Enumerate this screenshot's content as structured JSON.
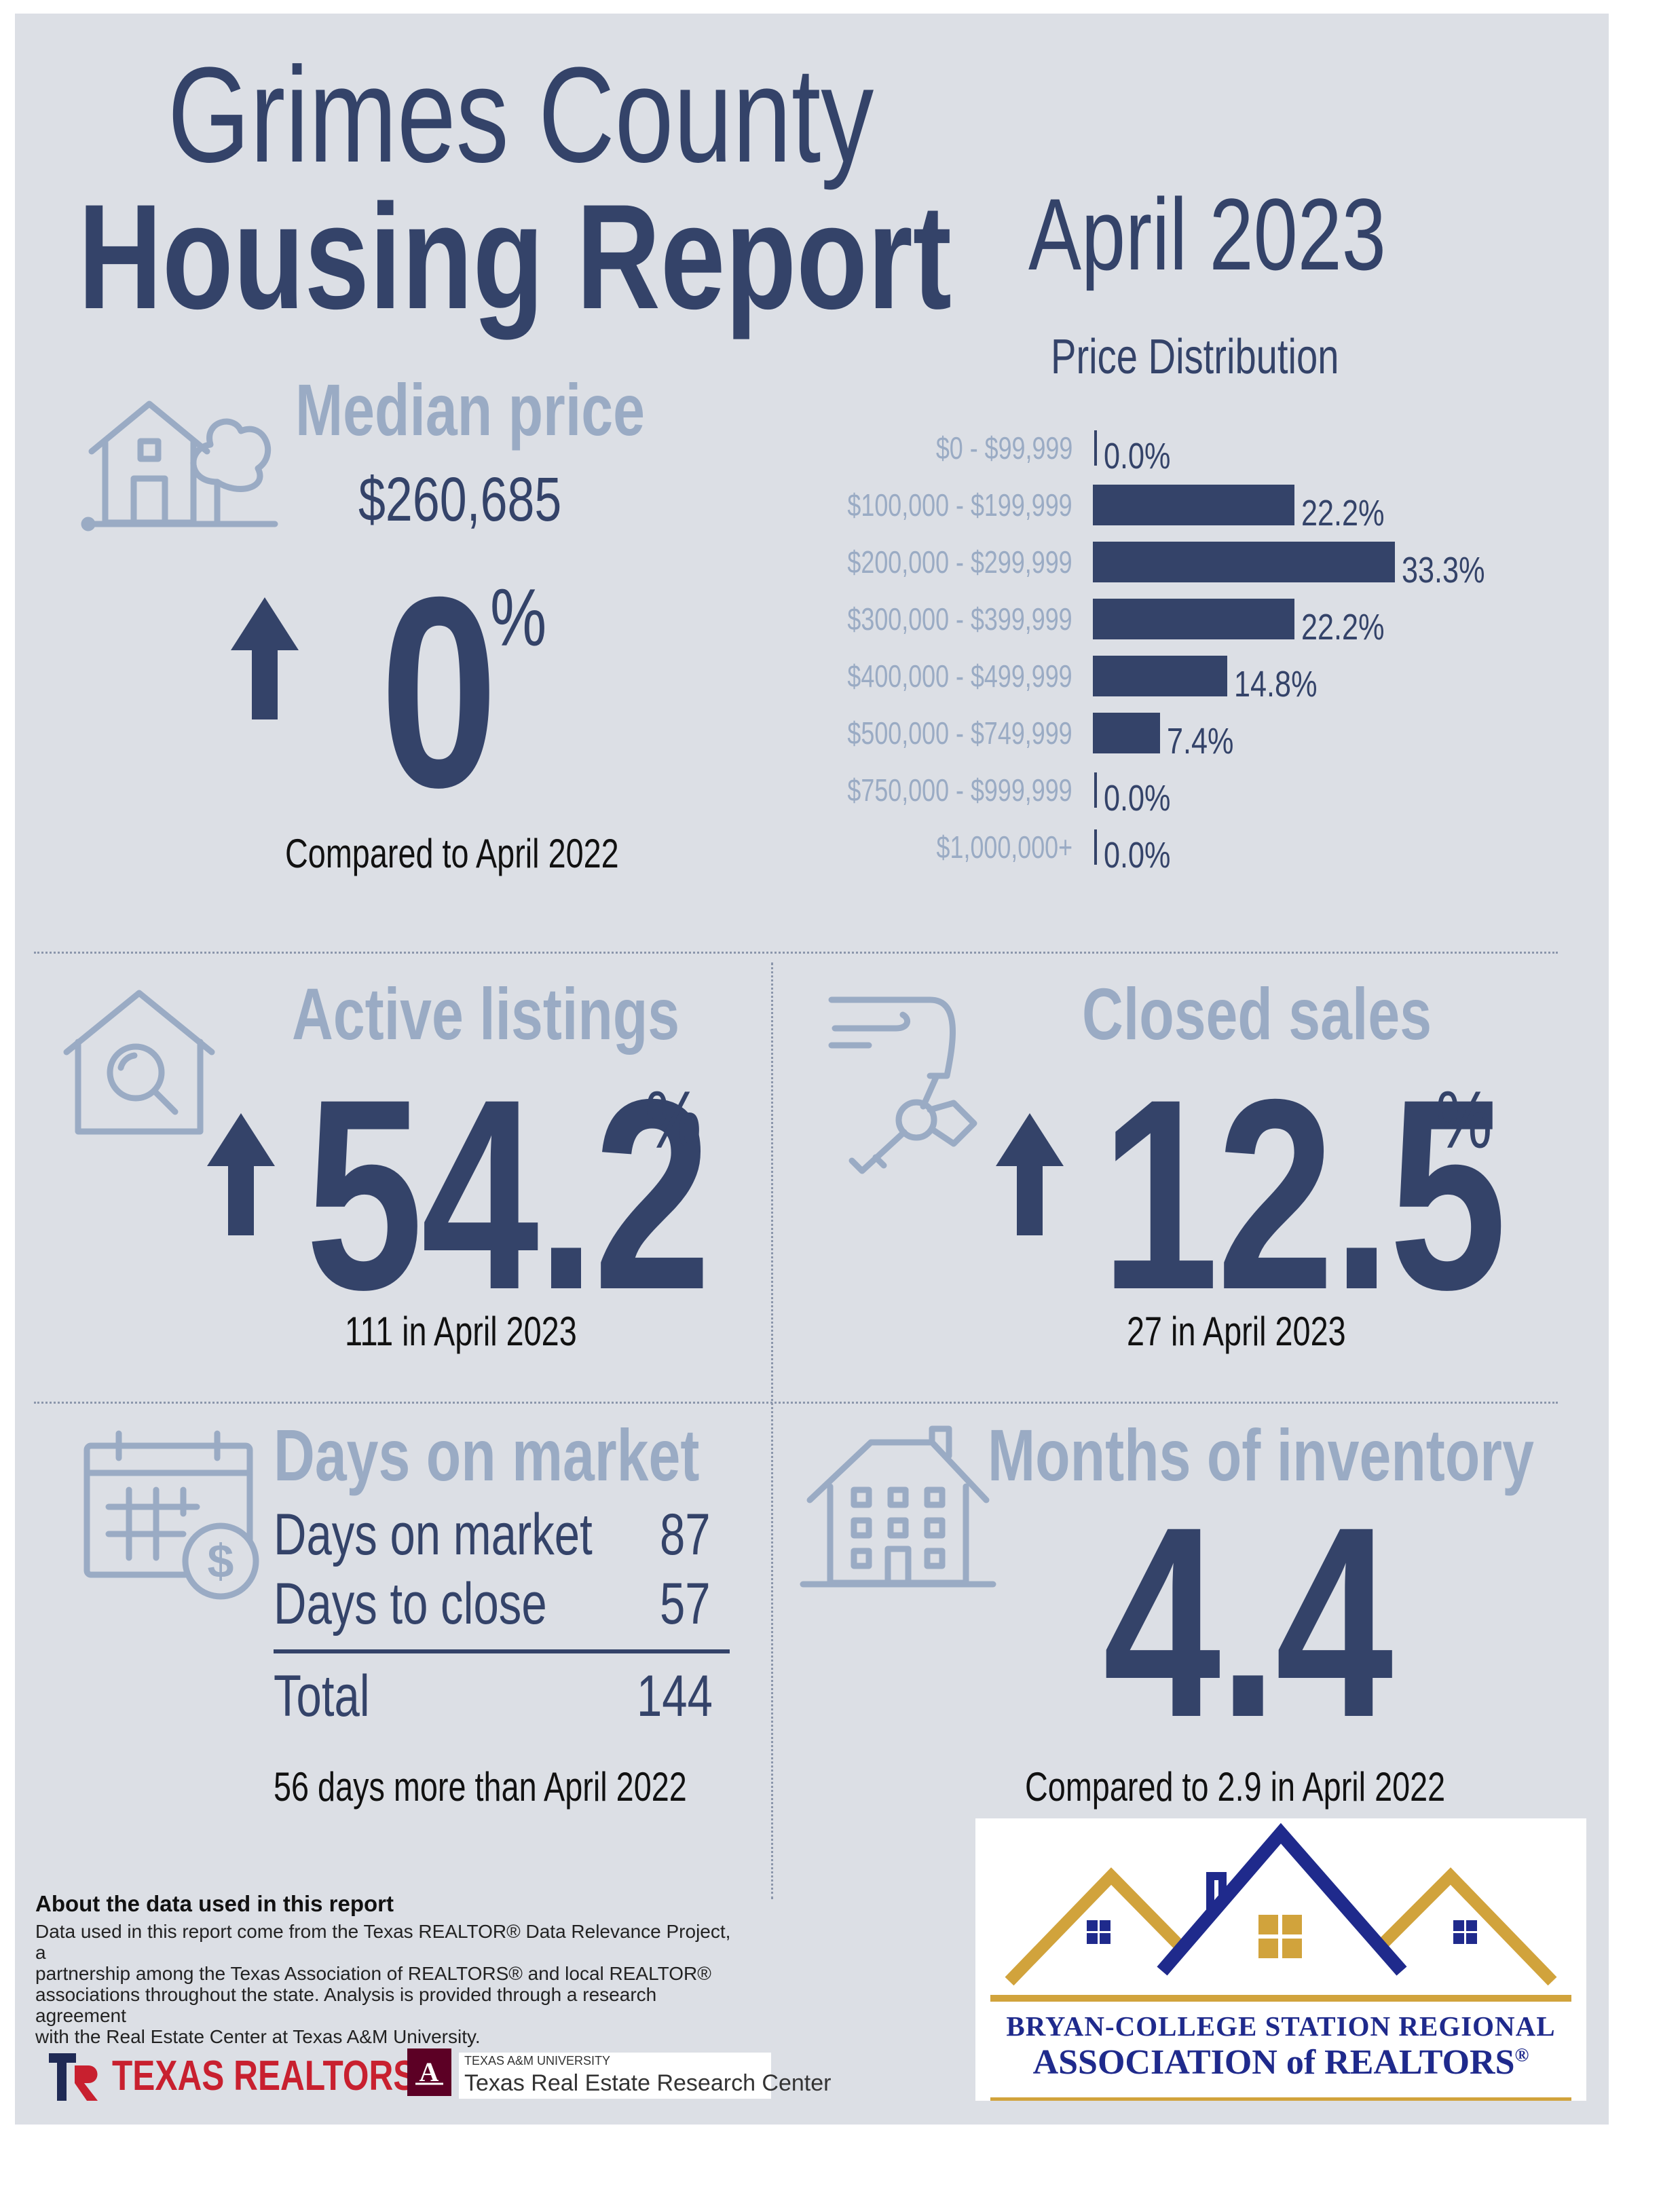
{
  "header": {
    "title_line1": "Grimes County",
    "title_line2": "Housing Report",
    "period": "April 2023"
  },
  "median_price": {
    "heading": "Median price",
    "value": "$260,685",
    "change": "0",
    "unit": "%",
    "direction": "up",
    "caption": "Compared to April 2022"
  },
  "price_distribution": {
    "heading": "Price Distribution",
    "rows": [
      {
        "label": "$0 - $99,999",
        "value": "0.0%"
      },
      {
        "label": "$100,000 - $199,999",
        "value": "22.2%"
      },
      {
        "label": "$200,000 - $299,999",
        "value": "33.3%"
      },
      {
        "label": "$300,000 - $399,999",
        "value": "22.2%"
      },
      {
        "label": "$400,000 - $499,999",
        "value": "14.8%"
      },
      {
        "label": "$500,000 - $749,999",
        "value": "7.4%"
      },
      {
        "label": "$750,000 - $999,999",
        "value": "0.0%"
      },
      {
        "label": "$1,000,000+",
        "value": "0.0%"
      }
    ]
  },
  "chart_data": {
    "type": "bar",
    "title": "Price Distribution",
    "categories": [
      "$0 - $99,999",
      "$100,000 - $199,999",
      "$200,000 - $299,999",
      "$300,000 - $399,999",
      "$400,000 - $499,999",
      "$500,000 - $749,999",
      "$750,000 - $999,999",
      "$1,000,000+"
    ],
    "values": [
      0.0,
      22.2,
      33.3,
      22.2,
      14.8,
      7.4,
      0.0,
      0.0
    ],
    "orientation": "horizontal",
    "grid": false
  },
  "active_listings": {
    "heading": "Active listings",
    "change": "54.2",
    "unit": "%",
    "direction": "up",
    "caption": "111 in April 2023"
  },
  "closed_sales": {
    "heading": "Closed sales",
    "change": "12.5",
    "unit": "%",
    "direction": "up",
    "caption": "27 in April 2023"
  },
  "days_on_market": {
    "heading": "Days on market",
    "rows": [
      {
        "label": "Days on market",
        "value": "87"
      },
      {
        "label": "Days to close",
        "value": "57"
      }
    ],
    "total_label": "Total",
    "total_value": "144",
    "caption": "56 days more than April 2022"
  },
  "months_inventory": {
    "heading": "Months of inventory",
    "value": "4.4",
    "caption": "Compared to 2.9 in April 2022"
  },
  "about": {
    "heading": "About the data used in this report",
    "lines": [
      "Data used in this report come from the Texas REALTOR® Data Relevance Project, a",
      "partnership among the Texas Association of REALTORS® and local REALTOR®",
      "associations throughout the state. Analysis is provided through a research agreement",
      "with the Real Estate Center at Texas A&M University."
    ]
  },
  "logos": {
    "texas_realtors": "TEXAS REALTORS",
    "tamu_small": "TEXAS A&M UNIVERSITY",
    "tamu_center": "Texas Real Estate Research Center",
    "assoc_line1": "BRYAN-COLLEGE STATION REGIONAL",
    "assoc_line2": "ASSOCIATION of REALTORS",
    "assoc_mark": "®"
  },
  "colors": {
    "navy": "#344369",
    "slate": "#9aabc4",
    "panel": "#dcdfe5",
    "gold": "#d1a33c",
    "royal": "#1f2a8c",
    "brand_red": "#c8202f"
  }
}
